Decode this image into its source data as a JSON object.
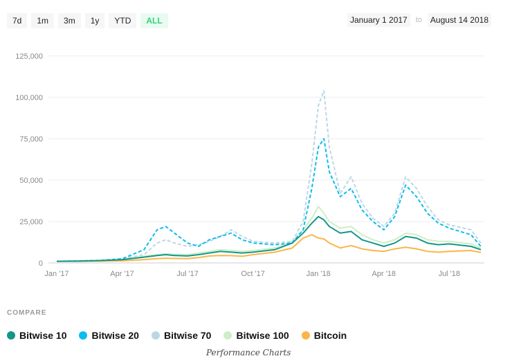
{
  "ranges": [
    "7d",
    "1m",
    "3m",
    "1y",
    "YTD",
    "ALL"
  ],
  "active_range": "ALL",
  "date_from": "January 1 2017",
  "date_sep": "to",
  "date_to": "August 14 2018",
  "compare_label": "COMPARE",
  "caption": "Performance Charts",
  "chart_data": {
    "type": "line",
    "x_unit": "months since Jan 2017",
    "xlim": [
      0,
      19.45
    ],
    "ylim": [
      0,
      125000
    ],
    "yticks": [
      0,
      25000,
      50000,
      75000,
      100000,
      125000
    ],
    "ytick_labels": [
      "0",
      "25,000",
      "50,000",
      "75,000",
      "100,000",
      "125,000"
    ],
    "xticks": [
      0,
      3,
      6,
      9,
      12,
      15,
      18
    ],
    "xtick_labels": [
      "Jan '17",
      "Apr '17",
      "Jul '17",
      "Oct '17",
      "Jan '18",
      "Apr '18",
      "Jul '18"
    ],
    "grid": true,
    "legend": "bottom",
    "x": [
      0,
      1,
      2,
      3,
      4,
      4.6,
      5,
      5.4,
      6,
      6.5,
      7,
      7.5,
      8,
      8.5,
      9,
      10,
      10.8,
      11.3,
      11.7,
      12,
      12.25,
      12.5,
      13,
      13.5,
      14,
      14.5,
      15,
      15.5,
      16,
      16.5,
      17,
      17.5,
      18,
      19,
      19.45
    ],
    "series": [
      {
        "name": "Bitwise 10",
        "color": "#14968a",
        "dash": false,
        "values": [
          1000,
          1100,
          1400,
          2000,
          3500,
          4500,
          5000,
          4500,
          4200,
          5000,
          6000,
          7000,
          6500,
          6000,
          6500,
          8000,
          12000,
          18000,
          24000,
          28000,
          26000,
          22000,
          18000,
          19000,
          14000,
          12000,
          10000,
          12000,
          16000,
          15000,
          12000,
          11000,
          11500,
          10000,
          8000
        ]
      },
      {
        "name": "Bitwise 20",
        "color": "#0bbcf0",
        "dash": true,
        "values": [
          1000,
          1200,
          1500,
          2500,
          8000,
          20000,
          22000,
          18000,
          12000,
          10000,
          14000,
          16000,
          18000,
          14000,
          12000,
          11000,
          12000,
          20000,
          45000,
          70000,
          75000,
          55000,
          40000,
          45000,
          32000,
          25000,
          20000,
          28000,
          47000,
          40000,
          30000,
          24000,
          21000,
          17000,
          10000
        ]
      },
      {
        "name": "Bitwise 70",
        "color": "#b9d8e4",
        "dash": true,
        "values": [
          1000,
          1200,
          1600,
          2500,
          5000,
          12000,
          14000,
          12000,
          10000,
          11000,
          13000,
          16000,
          20000,
          16000,
          13000,
          12000,
          13000,
          25000,
          60000,
          95000,
          104000,
          70000,
          42000,
          52000,
          36000,
          27000,
          22000,
          30000,
          52000,
          45000,
          34000,
          26000,
          23000,
          20000,
          12000
        ]
      },
      {
        "name": "Bitwise 100",
        "color": "#cdeec7",
        "dash": false,
        "values": [
          1000,
          1200,
          1500,
          2200,
          4000,
          5000,
          5500,
          5200,
          5000,
          6000,
          7000,
          8000,
          7500,
          7000,
          7500,
          9000,
          13000,
          20000,
          27000,
          34000,
          30000,
          25000,
          21000,
          22000,
          17000,
          14000,
          12000,
          14000,
          18000,
          17000,
          14000,
          13000,
          13000,
          11500,
          9000
        ]
      },
      {
        "name": "Bitcoin",
        "color": "#fbb548",
        "dash": false,
        "values": [
          1000,
          1000,
          1100,
          1300,
          2000,
          2600,
          2800,
          2700,
          2600,
          3200,
          4200,
          4500,
          4400,
          4000,
          5000,
          6500,
          9000,
          15000,
          17000,
          15000,
          14500,
          12000,
          9000,
          10500,
          8500,
          7500,
          7000,
          8500,
          9500,
          8500,
          7000,
          6500,
          7000,
          7500,
          6300
        ]
      }
    ]
  }
}
